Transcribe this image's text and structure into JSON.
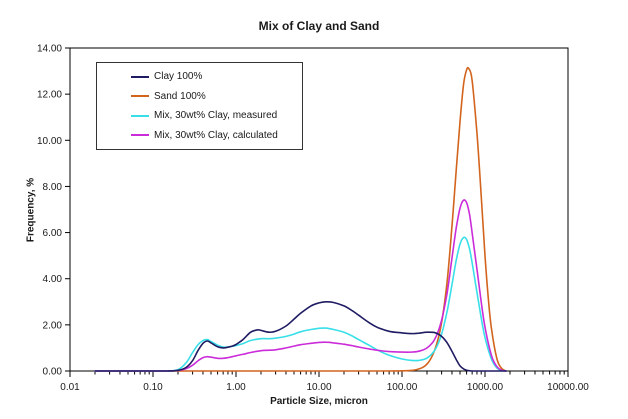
{
  "chart_data": {
    "type": "line",
    "title": "Mix of Clay and Sand",
    "xlabel": "Particle Size, micron",
    "ylabel": "Frequency, %",
    "x_scale": "log",
    "xlim": [
      0.01,
      10000
    ],
    "ylim": [
      0,
      14
    ],
    "grid": false,
    "legend_position": "inside-top-left",
    "x_tick_values": [
      0.01,
      0.1,
      1,
      10,
      100,
      1000,
      10000
    ],
    "x_tick_labels": [
      "0.01",
      "0.10",
      "1.00",
      "10.00",
      "100.00",
      "1000.00",
      "10000.00"
    ],
    "y_tick_values": [
      0,
      2,
      4,
      6,
      8,
      10,
      12,
      14
    ],
    "y_tick_labels": [
      "0.00",
      "2.00",
      "4.00",
      "6.00",
      "8.00",
      "10.00",
      "12.00",
      "14.00"
    ],
    "series": [
      {
        "name": "Clay 100%",
        "color": "#201c63",
        "points": [
          [
            0.02,
            0
          ],
          [
            0.05,
            0
          ],
          [
            0.1,
            0
          ],
          [
            0.15,
            0
          ],
          [
            0.2,
            0.03
          ],
          [
            0.25,
            0.15
          ],
          [
            0.3,
            0.45
          ],
          [
            0.35,
            0.9
          ],
          [
            0.4,
            1.2
          ],
          [
            0.45,
            1.3
          ],
          [
            0.5,
            1.22
          ],
          [
            0.6,
            1.05
          ],
          [
            0.7,
            1.0
          ],
          [
            0.8,
            1.03
          ],
          [
            0.9,
            1.08
          ],
          [
            1,
            1.15
          ],
          [
            1.2,
            1.35
          ],
          [
            1.5,
            1.68
          ],
          [
            1.8,
            1.78
          ],
          [
            2,
            1.76
          ],
          [
            2.5,
            1.68
          ],
          [
            3,
            1.72
          ],
          [
            4,
            1.95
          ],
          [
            5,
            2.25
          ],
          [
            6,
            2.5
          ],
          [
            8,
            2.82
          ],
          [
            10,
            2.95
          ],
          [
            12,
            3.0
          ],
          [
            15,
            2.97
          ],
          [
            20,
            2.82
          ],
          [
            25,
            2.62
          ],
          [
            30,
            2.42
          ],
          [
            40,
            2.1
          ],
          [
            50,
            1.9
          ],
          [
            70,
            1.72
          ],
          [
            100,
            1.65
          ],
          [
            130,
            1.62
          ],
          [
            160,
            1.64
          ],
          [
            200,
            1.68
          ],
          [
            250,
            1.66
          ],
          [
            300,
            1.5
          ],
          [
            350,
            1.22
          ],
          [
            400,
            0.85
          ],
          [
            450,
            0.5
          ],
          [
            500,
            0.22
          ],
          [
            560,
            0.08
          ],
          [
            620,
            0.02
          ],
          [
            700,
            0
          ],
          [
            1000,
            0
          ],
          [
            1800,
            0
          ]
        ]
      },
      {
        "name": "Sand 100%",
        "color": "#d2641e",
        "points": [
          [
            0.02,
            0
          ],
          [
            0.1,
            0
          ],
          [
            1,
            0
          ],
          [
            10,
            0
          ],
          [
            50,
            0
          ],
          [
            100,
            0.01
          ],
          [
            150,
            0.06
          ],
          [
            200,
            0.3
          ],
          [
            250,
            0.95
          ],
          [
            300,
            2.1
          ],
          [
            350,
            3.9
          ],
          [
            400,
            6.3
          ],
          [
            450,
            8.7
          ],
          [
            500,
            10.8
          ],
          [
            550,
            12.4
          ],
          [
            600,
            13.05
          ],
          [
            640,
            13.1
          ],
          [
            700,
            12.6
          ],
          [
            800,
            10.3
          ],
          [
            900,
            7.6
          ],
          [
            1000,
            5.0
          ],
          [
            1100,
            3.1
          ],
          [
            1200,
            1.8
          ],
          [
            1400,
            0.5
          ],
          [
            1600,
            0.1
          ],
          [
            1800,
            0
          ]
        ]
      },
      {
        "name": "Mix, 30wt% Clay, measured",
        "color": "#38dfe8",
        "points": [
          [
            0.02,
            0
          ],
          [
            0.1,
            0
          ],
          [
            0.15,
            0
          ],
          [
            0.2,
            0.06
          ],
          [
            0.25,
            0.35
          ],
          [
            0.3,
            0.8
          ],
          [
            0.35,
            1.15
          ],
          [
            0.4,
            1.32
          ],
          [
            0.45,
            1.36
          ],
          [
            0.5,
            1.28
          ],
          [
            0.6,
            1.12
          ],
          [
            0.7,
            1.04
          ],
          [
            0.8,
            1.04
          ],
          [
            0.9,
            1.07
          ],
          [
            1,
            1.1
          ],
          [
            1.2,
            1.18
          ],
          [
            1.5,
            1.32
          ],
          [
            2,
            1.4
          ],
          [
            2.5,
            1.4
          ],
          [
            3,
            1.42
          ],
          [
            4,
            1.5
          ],
          [
            5,
            1.6
          ],
          [
            6,
            1.7
          ],
          [
            8,
            1.8
          ],
          [
            10,
            1.85
          ],
          [
            12,
            1.86
          ],
          [
            15,
            1.8
          ],
          [
            20,
            1.68
          ],
          [
            25,
            1.52
          ],
          [
            30,
            1.36
          ],
          [
            40,
            1.12
          ],
          [
            50,
            0.92
          ],
          [
            70,
            0.68
          ],
          [
            100,
            0.52
          ],
          [
            130,
            0.46
          ],
          [
            160,
            0.46
          ],
          [
            200,
            0.56
          ],
          [
            250,
            0.92
          ],
          [
            300,
            1.6
          ],
          [
            350,
            2.6
          ],
          [
            400,
            3.75
          ],
          [
            450,
            4.8
          ],
          [
            500,
            5.5
          ],
          [
            550,
            5.78
          ],
          [
            600,
            5.7
          ],
          [
            650,
            5.3
          ],
          [
            700,
            4.7
          ],
          [
            800,
            3.4
          ],
          [
            900,
            2.3
          ],
          [
            1000,
            1.45
          ],
          [
            1200,
            0.5
          ],
          [
            1400,
            0.12
          ],
          [
            1600,
            0.02
          ],
          [
            1800,
            0
          ]
        ]
      },
      {
        "name": "Mix, 30wt% Clay, calculated",
        "color": "#cb2cd9",
        "points": [
          [
            0.02,
            0
          ],
          [
            0.1,
            0
          ],
          [
            0.15,
            0
          ],
          [
            0.2,
            0.02
          ],
          [
            0.25,
            0.1
          ],
          [
            0.3,
            0.25
          ],
          [
            0.35,
            0.45
          ],
          [
            0.4,
            0.58
          ],
          [
            0.45,
            0.62
          ],
          [
            0.5,
            0.6
          ],
          [
            0.6,
            0.55
          ],
          [
            0.7,
            0.55
          ],
          [
            0.8,
            0.58
          ],
          [
            0.9,
            0.62
          ],
          [
            1,
            0.66
          ],
          [
            1.2,
            0.72
          ],
          [
            1.5,
            0.8
          ],
          [
            2,
            0.88
          ],
          [
            2.5,
            0.9
          ],
          [
            3,
            0.92
          ],
          [
            4,
            1.0
          ],
          [
            5,
            1.08
          ],
          [
            6,
            1.14
          ],
          [
            8,
            1.2
          ],
          [
            10,
            1.24
          ],
          [
            12,
            1.25
          ],
          [
            15,
            1.22
          ],
          [
            20,
            1.16
          ],
          [
            25,
            1.1
          ],
          [
            30,
            1.04
          ],
          [
            40,
            0.96
          ],
          [
            50,
            0.9
          ],
          [
            70,
            0.84
          ],
          [
            100,
            0.82
          ],
          [
            130,
            0.82
          ],
          [
            160,
            0.86
          ],
          [
            200,
            1.0
          ],
          [
            250,
            1.4
          ],
          [
            300,
            2.2
          ],
          [
            350,
            3.4
          ],
          [
            400,
            4.9
          ],
          [
            450,
            6.2
          ],
          [
            500,
            7.05
          ],
          [
            550,
            7.4
          ],
          [
            600,
            7.3
          ],
          [
            650,
            6.8
          ],
          [
            700,
            6.0
          ],
          [
            800,
            4.4
          ],
          [
            900,
            3.0
          ],
          [
            1000,
            1.9
          ],
          [
            1200,
            0.65
          ],
          [
            1400,
            0.18
          ],
          [
            1600,
            0.03
          ],
          [
            1800,
            0
          ]
        ]
      }
    ]
  }
}
